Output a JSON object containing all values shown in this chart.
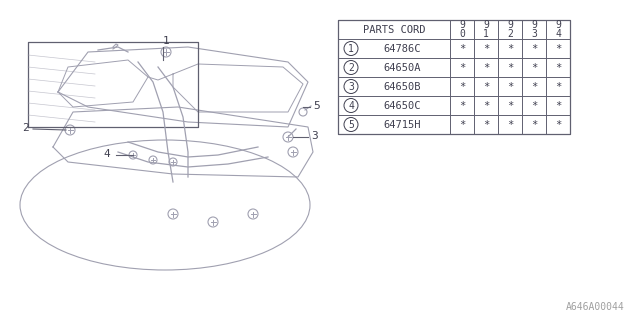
{
  "bg_color": "#ffffff",
  "diagram_color": "#a0a0b0",
  "table_color": "#606070",
  "title_bottom": "A646A00044",
  "table": {
    "header_col": "PARTS CORD",
    "year_cols": [
      "9\n0",
      "9\n1",
      "9\n2",
      "9\n3",
      "9\n4"
    ],
    "rows": [
      {
        "num": 1,
        "part": "64786C",
        "marks": [
          "*",
          "*",
          "*",
          "*",
          "*"
        ]
      },
      {
        "num": 2,
        "part": "64650A",
        "marks": [
          "*",
          "*",
          "*",
          "*",
          "*"
        ]
      },
      {
        "num": 3,
        "part": "64650B",
        "marks": [
          "*",
          "*",
          "*",
          "*",
          "*"
        ]
      },
      {
        "num": 4,
        "part": "64650C",
        "marks": [
          "*",
          "*",
          "*",
          "*",
          "*"
        ]
      },
      {
        "num": 5,
        "part": "64715H",
        "marks": [
          "*",
          "*",
          "*",
          "*",
          "*"
        ]
      }
    ]
  },
  "font_size_table": 7.5,
  "font_size_label": 8,
  "font_size_bottom": 7
}
